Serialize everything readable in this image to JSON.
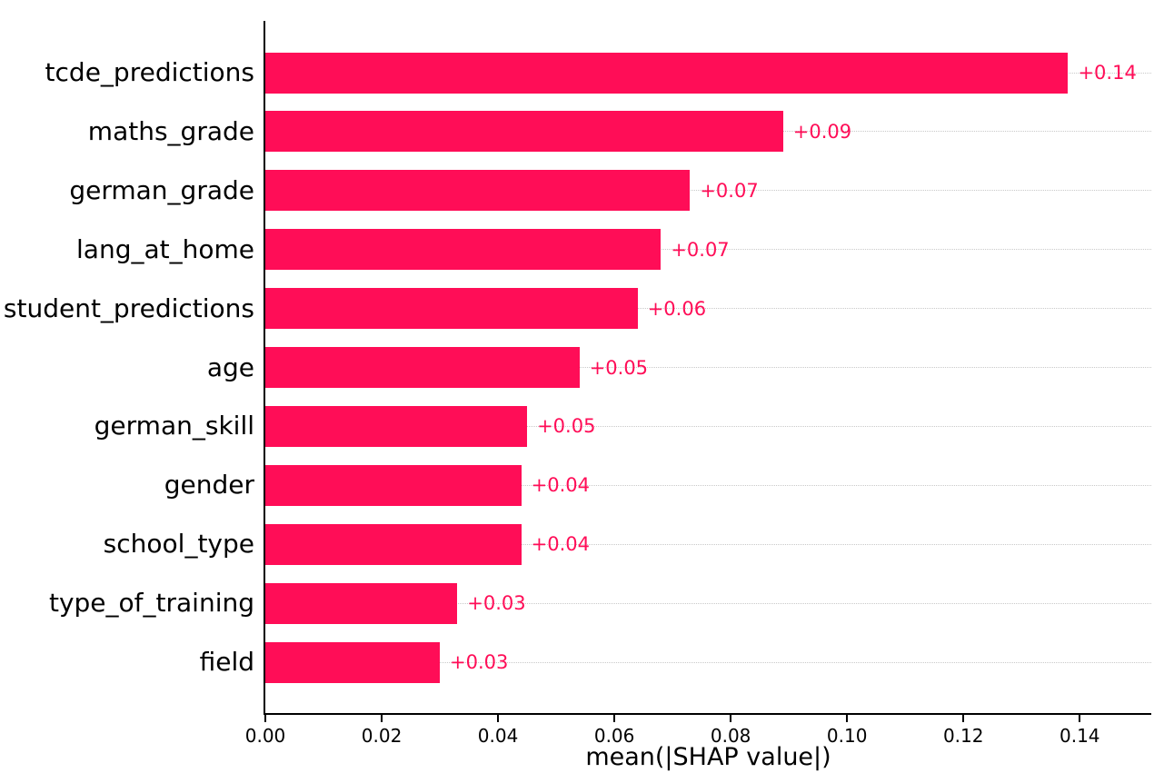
{
  "figure": {
    "background": "#ffffff"
  },
  "chart_data": {
    "type": "bar",
    "orientation": "horizontal",
    "title": "",
    "xlabel": "mean(|SHAP value|)",
    "ylabel": "",
    "categories": [
      "tcde_predictions",
      "maths_grade",
      "german_grade",
      "lang_at_home",
      "student_predictions",
      "age",
      "german_skill",
      "gender",
      "school_type",
      "type_of_training",
      "field"
    ],
    "values": [
      0.138,
      0.089,
      0.073,
      0.068,
      0.064,
      0.054,
      0.045,
      0.044,
      0.044,
      0.033,
      0.03
    ],
    "bar_value_labels": [
      "+0.14",
      "+0.09",
      "+0.07",
      "+0.07",
      "+0.06",
      "+0.05",
      "+0.05",
      "+0.04",
      "+0.04",
      "+0.03",
      "+0.03"
    ],
    "x_tick_values": [
      0.0,
      0.02,
      0.04,
      0.06,
      0.08,
      0.1,
      0.12,
      0.14
    ],
    "x_tick_labels": [
      "0.00",
      "0.02",
      "0.04",
      "0.06",
      "0.08",
      "0.10",
      "0.12",
      "0.14"
    ],
    "xlim": [
      0,
      0.1523
    ],
    "grid": "horizontal-dotted",
    "legend": "none",
    "bar_color": "#ff0d57",
    "value_label_color": "#ff0d57",
    "axis_color": "#000000",
    "gridline_color": "#c9c9c9"
  }
}
